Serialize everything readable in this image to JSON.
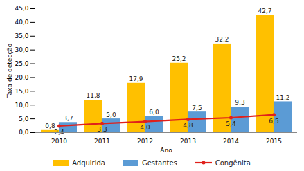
{
  "chart_data": {
    "type": "bar",
    "x_label": "Ano",
    "y_label": "Taxa de detecção",
    "categories": [
      "2010",
      "2011",
      "2012",
      "2013",
      "2014",
      "2015"
    ],
    "series": [
      {
        "name": "Adquirida",
        "type": "bar",
        "color": "#FFC000",
        "values": [
          0.8,
          11.8,
          17.9,
          25.2,
          32.2,
          42.7
        ],
        "value_labels": [
          "0,8",
          "11,8",
          "17,9",
          "25,2",
          "32,2",
          "42,7"
        ]
      },
      {
        "name": "Gestantes",
        "type": "bar",
        "color": "#5B9BD5",
        "values": [
          3.7,
          5.0,
          6.0,
          7.5,
          9.3,
          11.2
        ],
        "value_labels": [
          "3,7",
          "5,0",
          "6,0",
          "7,5",
          "9,3",
          "11,2"
        ]
      },
      {
        "name": "Congênita",
        "type": "line",
        "color": "#E0201B",
        "marker": "circle",
        "values": [
          2.4,
          3.3,
          4.0,
          4.8,
          5.4,
          6.5
        ],
        "value_labels": [
          "2,4",
          "3,3",
          "4,0",
          "4,8",
          "5,4",
          "6,5"
        ]
      }
    ],
    "ylim": [
      0,
      45
    ],
    "yticks": [
      {
        "value": 0,
        "label": "0,0"
      },
      {
        "value": 5,
        "label": "5,0"
      },
      {
        "value": 10,
        "label": "10,0"
      },
      {
        "value": 15,
        "label": "15,0"
      },
      {
        "value": 20,
        "label": "20,0"
      },
      {
        "value": 25,
        "label": "25,0"
      },
      {
        "value": 30,
        "label": "30,0"
      },
      {
        "value": 35,
        "label": "35,0"
      },
      {
        "value": 40,
        "label": "40,0"
      },
      {
        "value": 45,
        "label": "45,0"
      }
    ],
    "grid": false,
    "data_labels": true,
    "legend": "bottom"
  }
}
